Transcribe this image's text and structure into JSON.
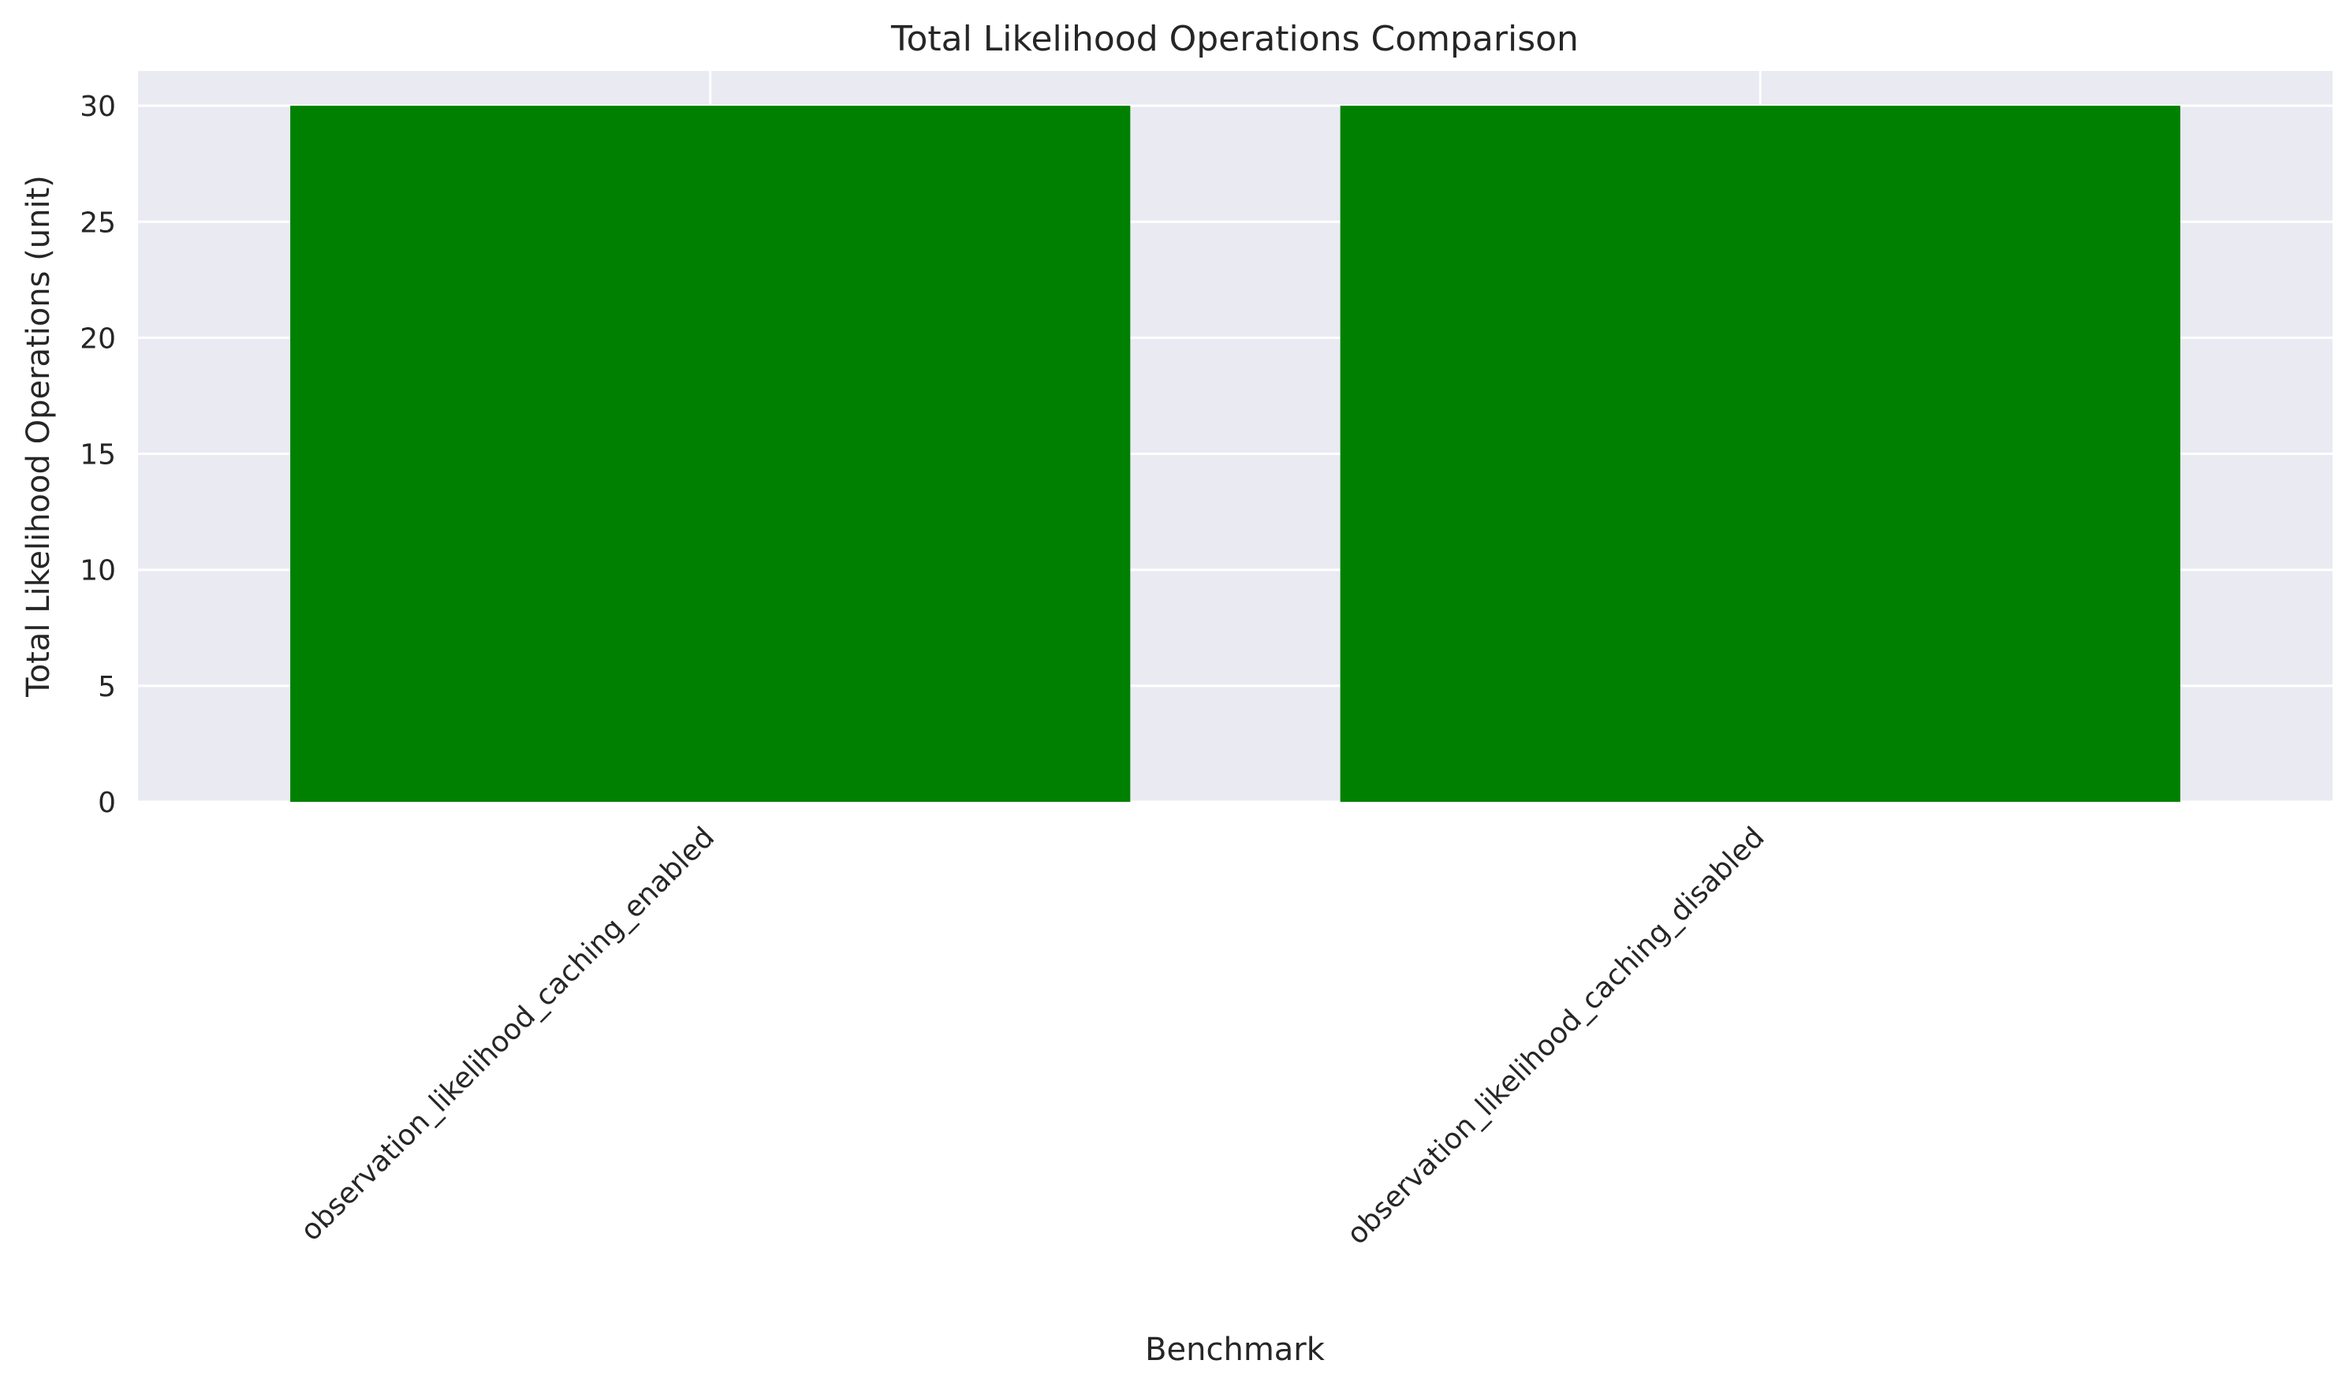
{
  "chart_data": {
    "type": "bar",
    "title": "Total Likelihood Operations Comparison",
    "xlabel": "Benchmark",
    "ylabel": "Total Likelihood Operations (unit)",
    "categories": [
      "observation_likelihood_caching_enabled",
      "observation_likelihood_caching_disabled"
    ],
    "values": [
      30,
      30
    ],
    "ylim": [
      0,
      31.5
    ],
    "yticks": [
      0,
      5,
      10,
      15,
      20,
      25,
      30
    ],
    "bar_color": "#008000",
    "plot_background": "#eaeaf2",
    "grid": true,
    "grid_color": "#ffffff",
    "xtick_rotation_deg": 45
  }
}
